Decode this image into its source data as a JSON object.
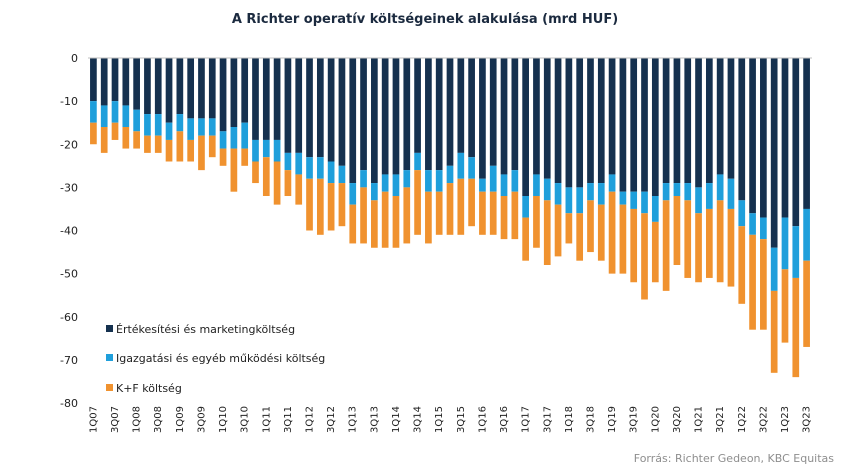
{
  "chart_data": {
    "type": "bar",
    "stacked": true,
    "title": "A Richter operatív költségeinek alakulása (mrd HUF)",
    "source": "Forrás: Richter Gedeon, KBC Equitas",
    "ylim": [
      -80,
      0
    ],
    "yticks": [
      0,
      -10,
      -20,
      -30,
      -40,
      -50,
      -60,
      -70,
      -80
    ],
    "legend_position": "bottom-left",
    "categories": [
      "1Q07",
      "2Q07",
      "3Q07",
      "4Q07",
      "1Q08",
      "2Q08",
      "3Q08",
      "4Q08",
      "1Q09",
      "2Q09",
      "3Q09",
      "4Q09",
      "1Q10",
      "2Q10",
      "3Q10",
      "4Q10",
      "1Q11",
      "2Q11",
      "3Q11",
      "4Q11",
      "1Q12",
      "2Q12",
      "3Q12",
      "4Q12",
      "1Q13",
      "2Q13",
      "3Q13",
      "4Q13",
      "1Q14",
      "2Q14",
      "3Q14",
      "4Q14",
      "1Q15",
      "2Q15",
      "3Q15",
      "4Q15",
      "1Q16",
      "2Q16",
      "3Q16",
      "4Q16",
      "1Q17",
      "2Q17",
      "3Q17",
      "4Q17",
      "1Q18",
      "2Q18",
      "3Q18",
      "4Q18",
      "1Q19",
      "2Q19",
      "3Q19",
      "4Q19",
      "1Q20",
      "2Q20",
      "3Q20",
      "4Q20",
      "1Q21",
      "2Q21",
      "3Q21",
      "4Q21",
      "1Q22",
      "2Q22",
      "3Q22",
      "4Q22",
      "1Q23",
      "2Q23",
      "3Q23"
    ],
    "labeled_categories": [
      "1Q07",
      "3Q07",
      "1Q08",
      "3Q08",
      "1Q09",
      "3Q09",
      "1Q10",
      "3Q10",
      "1Q11",
      "3Q11",
      "1Q12",
      "3Q12",
      "1Q13",
      "3Q13",
      "1Q14",
      "3Q14",
      "1Q15",
      "3Q15",
      "1Q16",
      "3Q16",
      "1Q17",
      "3Q17",
      "1Q18",
      "3Q18",
      "1Q19",
      "3Q19",
      "1Q20",
      "3Q20",
      "1Q21",
      "3Q21",
      "1Q22",
      "3Q22",
      "1Q23",
      "3Q23"
    ],
    "series": [
      {
        "name": "Értékesítési és marketingköltség",
        "color": "#15314f",
        "values": [
          -10,
          -11,
          -10,
          -11,
          -12,
          -13,
          -13,
          -15,
          -13,
          -14,
          -14,
          -14,
          -17,
          -16,
          -15,
          -19,
          -19,
          -19,
          -22,
          -22,
          -23,
          -23,
          -24,
          -25,
          -29,
          -26,
          -29,
          -27,
          -27,
          -26,
          -22,
          -26,
          -26,
          -25,
          -22,
          -23,
          -28,
          -25,
          -27,
          -26,
          -32,
          -27,
          -28,
          -29,
          -30,
          -30,
          -29,
          -29,
          -27,
          -31,
          -31,
          -31,
          -32,
          -29,
          -29,
          -29,
          -30,
          -29,
          -27,
          -28,
          -33,
          -36,
          -37,
          -44,
          -37,
          -39,
          -35
        ]
      },
      {
        "name": "Igazgatási és egyéb működési költség",
        "color": "#1f9fdb",
        "values": [
          -5,
          -5,
          -5,
          -5,
          -5,
          -5,
          -5,
          -4,
          -4,
          -5,
          -4,
          -4,
          -4,
          -5,
          -6,
          -5,
          -4,
          -5,
          -4,
          -5,
          -5,
          -5,
          -5,
          -4,
          -5,
          -4,
          -4,
          -4,
          -5,
          -4,
          -4,
          -5,
          -5,
          -4,
          -6,
          -5,
          -3,
          -6,
          -5,
          -5,
          -5,
          -5,
          -5,
          -5,
          -6,
          -6,
          -4,
          -5,
          -4,
          -3,
          -4,
          -5,
          -6,
          -4,
          -3,
          -4,
          -6,
          -6,
          -6,
          -7,
          -6,
          -5,
          -5,
          -10,
          -12,
          -12,
          -12
        ]
      },
      {
        "name": "K+F költség",
        "color": "#f0922f",
        "values": [
          -5,
          -6,
          -4,
          -5,
          -4,
          -4,
          -4,
          -5,
          -7,
          -5,
          -8,
          -5,
          -4,
          -10,
          -4,
          -5,
          -9,
          -10,
          -6,
          -7,
          -12,
          -13,
          -11,
          -10,
          -9,
          -13,
          -11,
          -13,
          -12,
          -13,
          -15,
          -12,
          -10,
          -12,
          -13,
          -11,
          -10,
          -10,
          -10,
          -11,
          -10,
          -12,
          -15,
          -12,
          -7,
          -11,
          -12,
          -13,
          -19,
          -16,
          -17,
          -20,
          -14,
          -21,
          -16,
          -18,
          -16,
          -16,
          -19,
          -18,
          -18,
          -22,
          -21,
          -19,
          -17,
          -23,
          -20
        ]
      }
    ]
  }
}
